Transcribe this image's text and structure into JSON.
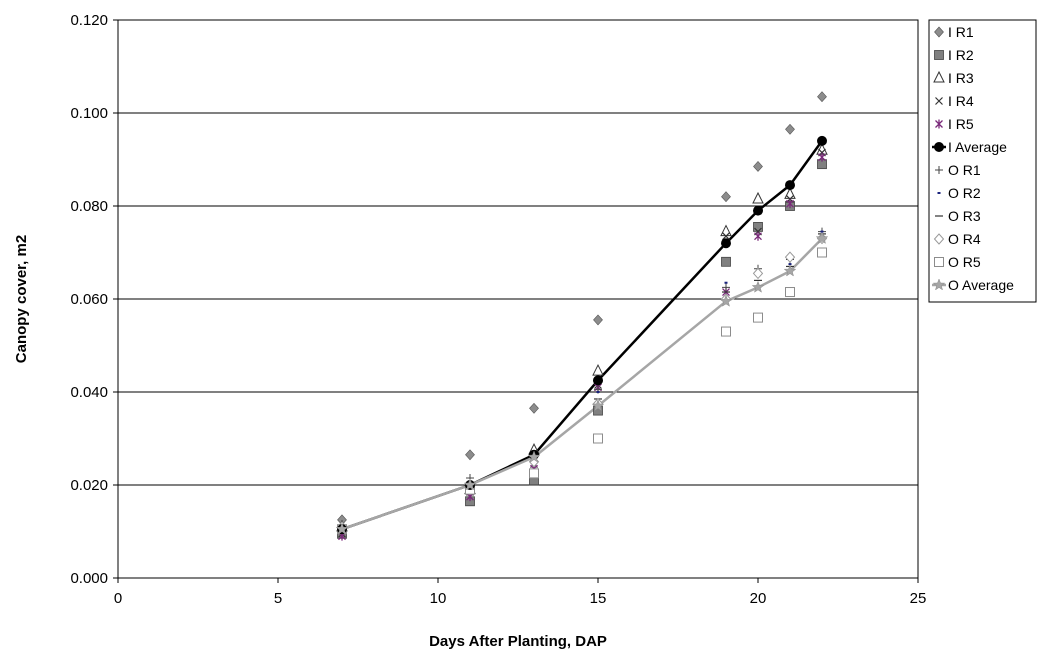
{
  "chart_data": {
    "type": "scatter",
    "xlabel": "Days After Planting, DAP",
    "ylabel": "Canopy cover, m2",
    "xlim": [
      0,
      25
    ],
    "ylim": [
      0,
      0.12
    ],
    "x_ticks": [
      "0",
      "5",
      "10",
      "15",
      "20",
      "25"
    ],
    "y_ticks": [
      "0.000",
      "0.020",
      "0.040",
      "0.060",
      "0.080",
      "0.100",
      "0.120"
    ],
    "grid": "horizontal",
    "legend_position": "right",
    "x": [
      7,
      11,
      13,
      15,
      19,
      20,
      21,
      22
    ],
    "series": [
      {
        "name": "I R1",
        "marker": "diamond",
        "color": "#8c8c8c",
        "values": [
          0.0125,
          0.0265,
          0.0365,
          0.0555,
          0.082,
          0.0885,
          0.0965,
          0.1035
        ]
      },
      {
        "name": "I R2",
        "marker": "square",
        "color": "#808080",
        "values": [
          0.0095,
          0.0165,
          0.021,
          0.036,
          0.068,
          0.0755,
          0.08,
          0.089
        ]
      },
      {
        "name": "I R3",
        "marker": "triangle",
        "color": "#333333",
        "values": [
          0.011,
          0.019,
          0.0275,
          0.0445,
          0.0745,
          0.0815,
          0.0825,
          0.092
        ]
      },
      {
        "name": "I R4",
        "marker": "x",
        "color": "#333333",
        "values": [
          0.0095,
          0.0185,
          0.0245,
          0.0415,
          0.0735,
          0.0745,
          0.0815,
          0.0915
        ]
      },
      {
        "name": "I R5",
        "marker": "asterisk",
        "color": "#7a2a7a",
        "values": [
          0.009,
          0.0175,
          0.0235,
          0.041,
          0.0615,
          0.0735,
          0.0805,
          0.0905
        ]
      },
      {
        "name": "I Average",
        "marker": "circle",
        "color": "#000000",
        "line": true,
        "values": [
          0.0105,
          0.02,
          0.0265,
          0.0425,
          0.072,
          0.079,
          0.0845,
          0.094
        ]
      },
      {
        "name": "O R1",
        "marker": "plus",
        "color": "#444444",
        "values": [
          0.011,
          0.0215,
          0.0265,
          0.0405,
          0.0625,
          0.0665,
          0.0685,
          0.0745
        ]
      },
      {
        "name": "O R2",
        "marker": "dash",
        "color": "#1a237e",
        "values": [
          0.01,
          0.02,
          0.0255,
          0.04,
          0.0635,
          0.065,
          0.0675,
          0.0745
        ]
      },
      {
        "name": "O R3",
        "marker": "minus",
        "color": "#333333",
        "values": [
          0.011,
          0.02,
          0.026,
          0.0385,
          0.0615,
          0.064,
          0.067,
          0.074
        ]
      },
      {
        "name": "O R4",
        "marker": "open-diamond",
        "color": "#999999",
        "values": [
          0.011,
          0.0195,
          0.025,
          0.0375,
          0.06,
          0.0655,
          0.069,
          0.073
        ]
      },
      {
        "name": "O R5",
        "marker": "open-square",
        "color": "#8c8c8c",
        "values": [
          0.0105,
          0.019,
          0.0225,
          0.03,
          0.053,
          0.056,
          0.0615,
          0.07
        ]
      },
      {
        "name": "O Average",
        "marker": "star",
        "color": "#a6a6a6",
        "line": true,
        "values": [
          0.0105,
          0.02,
          0.026,
          0.037,
          0.0595,
          0.0625,
          0.066,
          0.073
        ]
      }
    ]
  }
}
